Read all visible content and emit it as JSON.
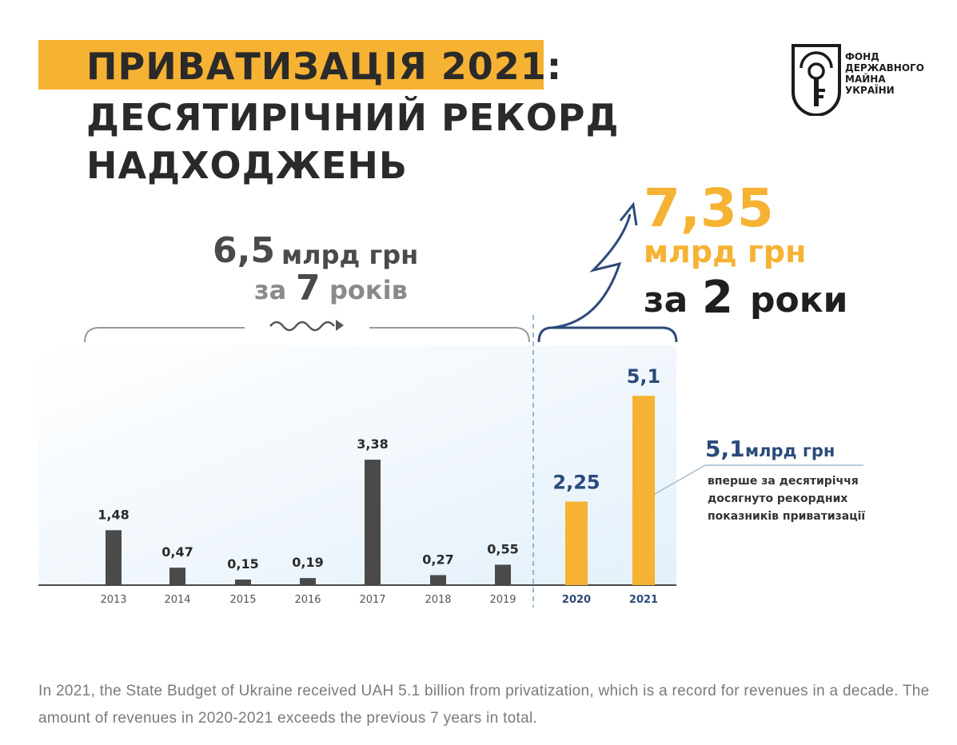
{
  "title": {
    "line1": "ПРИВАТИЗАЦІЯ 2021:",
    "line2": "ДЕСЯТИРІЧНИЙ РЕКОРД",
    "line3": "НАДХОДЖЕНЬ",
    "band_color": "#f6b233"
  },
  "logo": {
    "icon": "key-emblem-icon",
    "line1": "ФОНД",
    "line2": "ДЕРЖАВНОГО",
    "line3": "МАЙНА",
    "line4": "УКРАЇНИ"
  },
  "summary_left": {
    "amount": "6,5",
    "unit": "млрд грн",
    "prefix": "за",
    "years": "7",
    "suffix": "років"
  },
  "summary_right": {
    "amount": "7,35",
    "unit": "млрд грн",
    "prefix": "за",
    "years": "2",
    "suffix": "роки"
  },
  "callout": {
    "amount": "5,1",
    "unit": "млрд грн",
    "line1": "вперше за десятиріччя",
    "line2": "досягнуто рекордних",
    "line3": "показників приватизації"
  },
  "chart_data": {
    "type": "bar",
    "categories": [
      "2013",
      "2014",
      "2015",
      "2016",
      "2017",
      "2018",
      "2019",
      "2020",
      "2021"
    ],
    "values": [
      1.48,
      0.47,
      0.15,
      0.19,
      3.38,
      0.27,
      0.55,
      2.25,
      5.1
    ],
    "value_labels": [
      "1,48",
      "0,47",
      "0,15",
      "0,19",
      "3,38",
      "0,27",
      "0,55",
      "2,25",
      "5,1"
    ],
    "highlight": [
      "2020",
      "2021"
    ],
    "colors": {
      "default": "#4a4a4a",
      "highlight": "#f6b233",
      "label_default": "#2a2a2a",
      "label_highlight": "#2c4a7a"
    },
    "ylim": [
      0,
      5.6
    ],
    "grid": false,
    "xlabel": "",
    "ylabel": ""
  },
  "caption": "In 2021, the State Budget of Ukraine received UAH 5.1 billion from privatization, which is a record for revenues in a decade. The amount of revenues in 2020-2021 exceeds the previous 7 years in total."
}
